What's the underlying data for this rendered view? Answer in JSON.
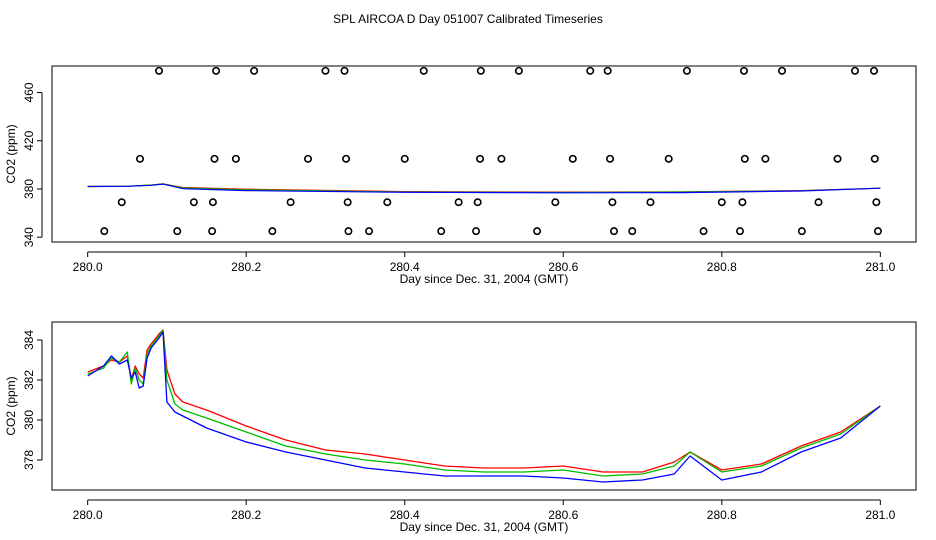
{
  "title": "SPL AIRCOA D  Day 051007  Calibrated Timeseries",
  "colors": {
    "red": "#ff0000",
    "green": "#00bb00",
    "blue": "#0000ff",
    "axis": "#000000"
  },
  "chart_data": [
    {
      "type": "line",
      "xlabel": "Day since Dec. 31, 2004 (GMT)",
      "ylabel": "CO2 (ppm)",
      "xlim": [
        279.955,
        281.045
      ],
      "ylim": [
        336,
        482
      ],
      "xticks": [
        280.0,
        280.2,
        280.4,
        280.6,
        280.8,
        281.0
      ],
      "xtick_labels": [
        "280.0",
        "280.2",
        "280.4",
        "280.6",
        "280.8",
        "281.0"
      ],
      "yticks": [
        340,
        380,
        420,
        460
      ],
      "ytick_labels": [
        "340",
        "380",
        "420",
        "460"
      ],
      "lines": [
        {
          "name": "red",
          "color": "#ff0000",
          "x": [
            280.0,
            280.05,
            280.08,
            280.095,
            280.12,
            280.2,
            280.4,
            280.6,
            280.75,
            280.9,
            281.0
          ],
          "y": [
            382,
            382.3,
            383.2,
            384.2,
            381.2,
            379.8,
            377.8,
            377.4,
            377.6,
            378.6,
            380.6
          ]
        },
        {
          "name": "green",
          "color": "#00bb00",
          "x": [
            280.0,
            280.05,
            280.08,
            280.095,
            280.12,
            280.2,
            280.4,
            280.6,
            280.75,
            280.9,
            281.0
          ],
          "y": [
            382,
            382.3,
            383.2,
            384.2,
            380.8,
            379.3,
            377.5,
            377.1,
            377.5,
            378.5,
            380.6
          ]
        },
        {
          "name": "blue",
          "color": "#0000ff",
          "x": [
            280.0,
            280.05,
            280.08,
            280.095,
            280.12,
            280.2,
            280.4,
            280.6,
            280.75,
            280.9,
            281.0
          ],
          "y": [
            382,
            382.2,
            383.0,
            384.0,
            380.2,
            378.6,
            377.2,
            376.8,
            377.0,
            378.3,
            380.6
          ]
        }
      ],
      "points": {
        "marker": "open-circle",
        "series": [
          {
            "y": 478,
            "x": [
              280.09,
              280.162,
              280.21,
              280.3,
              280.324,
              280.424,
              280.496,
              280.544,
              280.634,
              280.656,
              280.756,
              280.828,
              280.876,
              280.968,
              280.992
            ]
          },
          {
            "y": 405,
            "x": [
              280.066,
              280.16,
              280.187,
              280.278,
              280.326,
              280.4,
              280.495,
              280.522,
              280.612,
              280.659,
              280.733,
              280.829,
              280.855,
              280.946,
              280.993
            ]
          },
          {
            "y": 369,
            "x": [
              280.043,
              280.134,
              280.158,
              280.256,
              280.328,
              280.378,
              280.468,
              280.492,
              280.59,
              280.662,
              280.71,
              280.8,
              280.826,
              280.922,
              280.995
            ]
          },
          {
            "y": 345,
            "x": [
              280.021,
              280.113,
              280.157,
              280.233,
              280.329,
              280.355,
              280.446,
              280.49,
              280.567,
              280.664,
              280.687,
              280.777,
              280.823,
              280.901,
              280.997
            ]
          }
        ]
      }
    },
    {
      "type": "line",
      "xlabel": "Day since Dec. 31, 2004 (GMT)",
      "ylabel": "CO2 (ppm)",
      "xlim": [
        279.955,
        281.045
      ],
      "ylim": [
        376.5,
        384.9
      ],
      "xticks": [
        280.0,
        280.2,
        280.4,
        280.6,
        280.8,
        281.0
      ],
      "xtick_labels": [
        "280.0",
        "280.2",
        "280.4",
        "280.6",
        "280.8",
        "281.0"
      ],
      "yticks": [
        378,
        380,
        382,
        384
      ],
      "ytick_labels": [
        "378",
        "380",
        "382",
        "384"
      ],
      "x": [
        280.0,
        280.02,
        280.03,
        280.04,
        280.05,
        280.055,
        280.06,
        280.065,
        280.07,
        280.075,
        280.08,
        280.09,
        280.095,
        280.1,
        280.11,
        280.12,
        280.15,
        280.2,
        280.25,
        280.3,
        280.35,
        280.4,
        280.45,
        280.5,
        280.55,
        280.6,
        280.65,
        280.7,
        280.74,
        280.76,
        280.8,
        280.85,
        280.9,
        280.95,
        281.0
      ],
      "series": [
        {
          "name": "red",
          "color": "#ff0000",
          "values": [
            382.4,
            382.7,
            383.0,
            382.9,
            383.2,
            382.0,
            382.7,
            382.3,
            382.1,
            383.5,
            383.8,
            384.3,
            384.5,
            382.5,
            381.3,
            380.9,
            380.5,
            379.7,
            379.0,
            378.5,
            378.3,
            378.0,
            377.7,
            377.6,
            377.6,
            377.7,
            377.4,
            377.4,
            377.9,
            378.4,
            377.5,
            377.8,
            378.7,
            379.4,
            380.7
          ]
        },
        {
          "name": "green",
          "color": "#00bb00",
          "values": [
            382.3,
            382.6,
            383.1,
            382.9,
            383.4,
            381.8,
            382.6,
            382.0,
            381.8,
            383.3,
            383.7,
            384.2,
            384.5,
            382.0,
            380.8,
            380.5,
            380.1,
            379.4,
            378.7,
            378.3,
            378.0,
            377.8,
            377.5,
            377.4,
            377.4,
            377.5,
            377.2,
            377.3,
            377.7,
            378.4,
            377.4,
            377.7,
            378.6,
            379.3,
            380.7
          ]
        },
        {
          "name": "blue",
          "color": "#0000ff",
          "values": [
            382.2,
            382.7,
            383.2,
            382.8,
            383.0,
            382.1,
            382.4,
            381.6,
            381.7,
            383.1,
            383.6,
            384.1,
            384.4,
            380.9,
            380.4,
            380.2,
            379.6,
            378.9,
            378.4,
            378.0,
            377.6,
            377.4,
            377.2,
            377.2,
            377.2,
            377.1,
            376.9,
            377.0,
            377.3,
            378.2,
            377.0,
            377.4,
            378.4,
            379.1,
            380.7
          ]
        }
      ]
    }
  ]
}
